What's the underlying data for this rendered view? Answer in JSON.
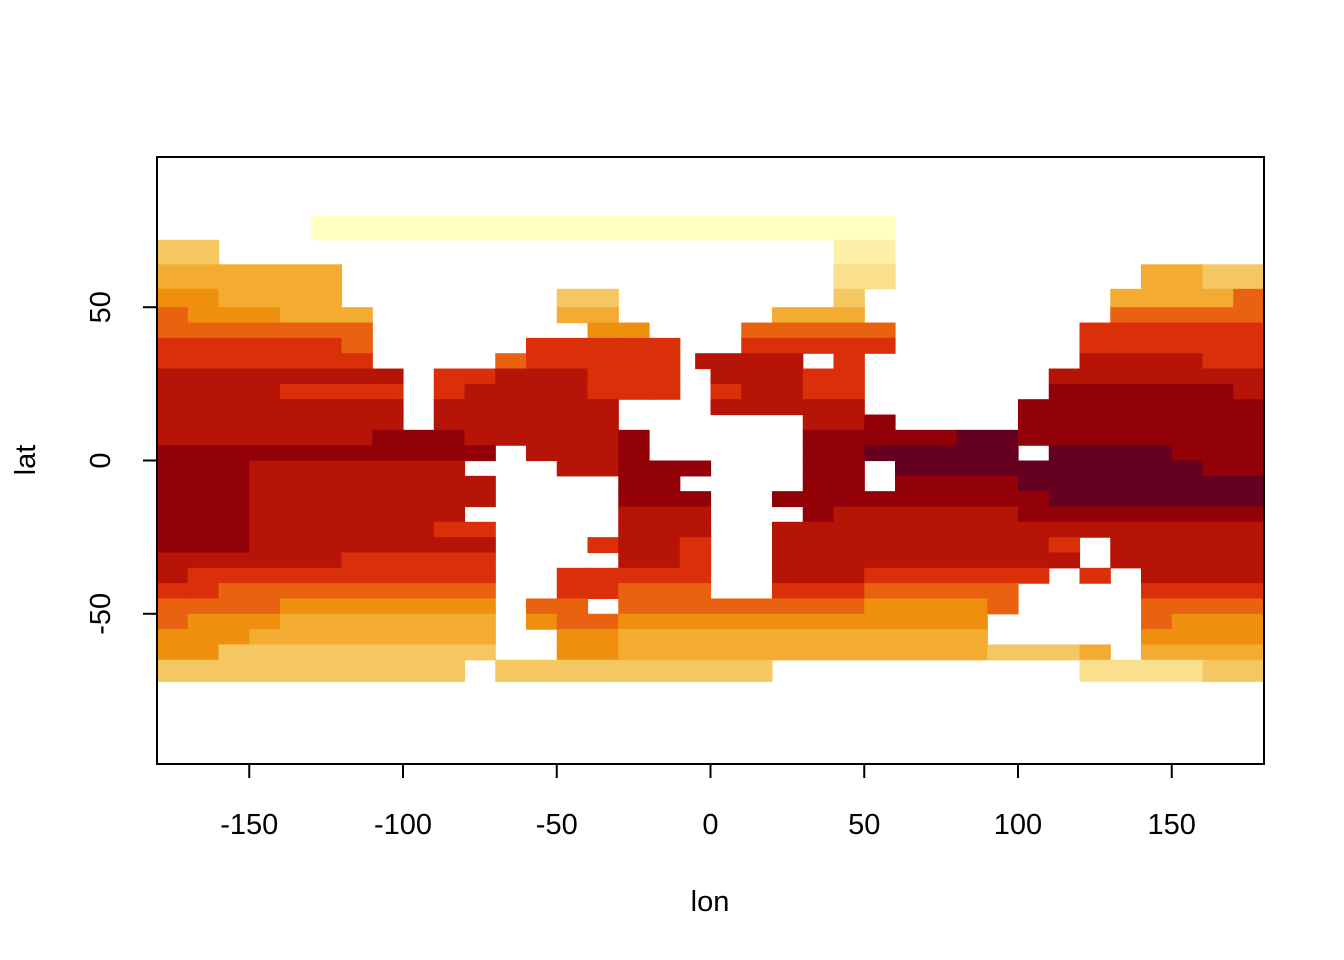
{
  "chart_data": {
    "type": "heatmap",
    "title": "",
    "xlabel": "lon",
    "ylabel": "lat",
    "xlim": [
      -180,
      180
    ],
    "ylim": [
      -99,
      99
    ],
    "x_ticks": [
      -150,
      -100,
      -50,
      0,
      50,
      100,
      150
    ],
    "x_tick_labels": [
      "-150",
      "-100",
      "-50",
      "0",
      "50",
      "100",
      "150"
    ],
    "y_ticks": [
      -50,
      0,
      50
    ],
    "y_tick_labels": [
      "-50",
      "0",
      "50"
    ],
    "grid": false,
    "legend": "none",
    "colormap": "heat (1 = lightest, 10 = darkest)",
    "palette": [
      "#FFFFC0",
      "#FCF0A8",
      "#FADF8C",
      "#F5C763",
      "#F3AC31",
      "#EF8F0E",
      "#E86210",
      "#DA2F08",
      "#B51407",
      "#920108",
      "#650021"
    ],
    "cells": [
      {
        "rows": [
          72,
          80
        ],
        "runs": [
          [
            -130,
            60,
            0
          ]
        ]
      },
      {
        "rows": [
          64,
          72
        ],
        "runs": [
          [
            -180,
            -160,
            3
          ],
          [
            40,
            60,
            1
          ]
        ]
      },
      {
        "rows": [
          56,
          64
        ],
        "runs": [
          [
            -180,
            -120,
            4
          ],
          [
            40,
            60,
            2
          ],
          [
            140,
            160,
            4
          ],
          [
            160,
            180,
            3
          ]
        ]
      },
      {
        "rows": [
          50,
          56
        ],
        "runs": [
          [
            -180,
            -160,
            5
          ],
          [
            -160,
            -140,
            4
          ],
          [
            -140,
            -120,
            4
          ],
          [
            -50,
            -30,
            3
          ],
          [
            40,
            50,
            3
          ],
          [
            130,
            160,
            4
          ],
          [
            160,
            170,
            4
          ],
          [
            170,
            180,
            6
          ]
        ]
      },
      {
        "rows": [
          45,
          50
        ],
        "runs": [
          [
            -180,
            -170,
            6
          ],
          [
            -170,
            -160,
            5
          ],
          [
            -160,
            -140,
            5
          ],
          [
            -140,
            -110,
            4
          ],
          [
            -50,
            -40,
            4
          ],
          [
            -40,
            -30,
            4
          ],
          [
            20,
            50,
            4
          ],
          [
            130,
            160,
            6
          ],
          [
            160,
            180,
            6
          ]
        ]
      },
      {
        "rows": [
          40,
          45
        ],
        "runs": [
          [
            -180,
            -150,
            6
          ],
          [
            -150,
            -110,
            6
          ],
          [
            -40,
            -20,
            5
          ],
          [
            10,
            20,
            6
          ],
          [
            20,
            60,
            6
          ],
          [
            120,
            130,
            7
          ],
          [
            130,
            180,
            7
          ]
        ]
      },
      {
        "rows": [
          35,
          40
        ],
        "runs": [
          [
            -180,
            -120,
            7
          ],
          [
            -120,
            -110,
            6
          ],
          [
            -60,
            -30,
            7
          ],
          [
            -30,
            -10,
            7
          ],
          [
            10,
            60,
            7
          ],
          [
            120,
            180,
            7
          ]
        ]
      },
      {
        "rows": [
          30,
          35
        ],
        "runs": [
          [
            -180,
            -120,
            7
          ],
          [
            -120,
            -110,
            7
          ],
          [
            -70,
            -60,
            6
          ],
          [
            -60,
            -20,
            7
          ],
          [
            -20,
            -10,
            7
          ],
          [
            -5,
            10,
            8
          ],
          [
            10,
            30,
            8
          ],
          [
            40,
            50,
            7
          ],
          [
            120,
            160,
            8
          ],
          [
            160,
            180,
            7
          ]
        ]
      },
      {
        "rows": [
          25,
          30
        ],
        "runs": [
          [
            -180,
            -100,
            8
          ],
          [
            -90,
            -70,
            7
          ],
          [
            -70,
            -40,
            8
          ],
          [
            -40,
            -10,
            7
          ],
          [
            0,
            30,
            8
          ],
          [
            30,
            50,
            7
          ],
          [
            110,
            180,
            8
          ]
        ]
      },
      {
        "rows": [
          20,
          25
        ],
        "runs": [
          [
            -180,
            -140,
            8
          ],
          [
            -140,
            -130,
            7
          ],
          [
            -130,
            -100,
            7
          ],
          [
            -90,
            -80,
            7
          ],
          [
            -80,
            -40,
            8
          ],
          [
            -40,
            -20,
            7
          ],
          [
            -20,
            -10,
            7
          ],
          [
            0,
            10,
            7
          ],
          [
            10,
            30,
            8
          ],
          [
            30,
            50,
            7
          ],
          [
            110,
            170,
            9
          ],
          [
            170,
            180,
            8
          ]
        ]
      },
      {
        "rows": [
          15,
          20
        ],
        "runs": [
          [
            -180,
            -100,
            8
          ],
          [
            -90,
            -30,
            8
          ],
          [
            0,
            30,
            8
          ],
          [
            30,
            50,
            8
          ],
          [
            100,
            180,
            9
          ]
        ]
      },
      {
        "rows": [
          10,
          15
        ],
        "runs": [
          [
            -180,
            -100,
            8
          ],
          [
            -90,
            -30,
            8
          ],
          [
            30,
            50,
            8
          ],
          [
            50,
            60,
            9
          ],
          [
            100,
            180,
            9
          ]
        ]
      },
      {
        "rows": [
          5,
          10
        ],
        "runs": [
          [
            -180,
            -110,
            8
          ],
          [
            -110,
            -80,
            9
          ],
          [
            -80,
            -30,
            8
          ],
          [
            -30,
            -20,
            9
          ],
          [
            30,
            50,
            9
          ],
          [
            50,
            80,
            9
          ],
          [
            80,
            100,
            10
          ],
          [
            100,
            180,
            9
          ]
        ]
      },
      {
        "rows": [
          0,
          5
        ],
        "runs": [
          [
            -180,
            -80,
            9
          ],
          [
            -80,
            -70,
            9
          ],
          [
            -60,
            -30,
            8
          ],
          [
            -30,
            -20,
            9
          ],
          [
            30,
            50,
            9
          ],
          [
            50,
            70,
            10
          ],
          [
            70,
            90,
            10
          ],
          [
            90,
            100,
            10
          ],
          [
            110,
            150,
            10
          ],
          [
            150,
            180,
            9
          ]
        ]
      },
      {
        "rows": [
          -5,
          0
        ],
        "runs": [
          [
            -180,
            -150,
            9
          ],
          [
            -150,
            -80,
            8
          ],
          [
            -50,
            -30,
            8
          ],
          [
            -30,
            -20,
            9
          ],
          [
            -20,
            0,
            9
          ],
          [
            30,
            50,
            9
          ],
          [
            60,
            100,
            10
          ],
          [
            100,
            160,
            10
          ],
          [
            160,
            180,
            9
          ]
        ]
      },
      {
        "rows": [
          -10,
          -5
        ],
        "runs": [
          [
            -180,
            -150,
            9
          ],
          [
            -150,
            -70,
            8
          ],
          [
            -30,
            -20,
            9
          ],
          [
            -20,
            -10,
            9
          ],
          [
            30,
            50,
            9
          ],
          [
            60,
            100,
            9
          ],
          [
            100,
            180,
            10
          ]
        ]
      },
      {
        "rows": [
          -15,
          -10
        ],
        "runs": [
          [
            -180,
            -150,
            9
          ],
          [
            -150,
            -70,
            8
          ],
          [
            -30,
            0,
            9
          ],
          [
            20,
            30,
            9
          ],
          [
            30,
            50,
            9
          ],
          [
            50,
            110,
            9
          ],
          [
            110,
            170,
            10
          ],
          [
            170,
            180,
            10
          ]
        ]
      },
      {
        "rows": [
          -20,
          -15
        ],
        "runs": [
          [
            -180,
            -150,
            9
          ],
          [
            -150,
            -140,
            8
          ],
          [
            -140,
            -80,
            8
          ],
          [
            -30,
            0,
            8
          ],
          [
            30,
            40,
            9
          ],
          [
            40,
            100,
            8
          ],
          [
            100,
            180,
            9
          ]
        ]
      },
      {
        "rows": [
          -25,
          -20
        ],
        "runs": [
          [
            -180,
            -150,
            9
          ],
          [
            -150,
            -90,
            8
          ],
          [
            -90,
            -70,
            7
          ],
          [
            -30,
            0,
            8
          ],
          [
            20,
            40,
            8
          ],
          [
            40,
            120,
            8
          ],
          [
            120,
            180,
            8
          ]
        ]
      },
      {
        "rows": [
          -30,
          -25
        ],
        "runs": [
          [
            -180,
            -150,
            9
          ],
          [
            -150,
            -70,
            8
          ],
          [
            -40,
            -30,
            7
          ],
          [
            -30,
            -10,
            8
          ],
          [
            -10,
            0,
            7
          ],
          [
            20,
            110,
            8
          ],
          [
            110,
            120,
            7
          ],
          [
            130,
            180,
            8
          ]
        ]
      },
      {
        "rows": [
          -35,
          -30
        ],
        "runs": [
          [
            -180,
            -120,
            8
          ],
          [
            -120,
            -70,
            7
          ],
          [
            -30,
            -10,
            8
          ],
          [
            -10,
            0,
            7
          ],
          [
            20,
            100,
            8
          ],
          [
            100,
            120,
            8
          ],
          [
            130,
            180,
            8
          ]
        ]
      },
      {
        "rows": [
          -40,
          -35
        ],
        "runs": [
          [
            -180,
            -170,
            8
          ],
          [
            -170,
            -120,
            7
          ],
          [
            -120,
            -70,
            7
          ],
          [
            -50,
            -40,
            7
          ],
          [
            -40,
            -30,
            7
          ],
          [
            -30,
            -10,
            7
          ],
          [
            -10,
            0,
            7
          ],
          [
            20,
            50,
            8
          ],
          [
            50,
            110,
            7
          ],
          [
            120,
            130,
            7
          ],
          [
            140,
            180,
            8
          ]
        ]
      },
      {
        "rows": [
          -45,
          -40
        ],
        "runs": [
          [
            -180,
            -170,
            7
          ],
          [
            -170,
            -160,
            7
          ],
          [
            -160,
            -140,
            6
          ],
          [
            -140,
            -70,
            6
          ],
          [
            -50,
            -30,
            7
          ],
          [
            -30,
            -10,
            6
          ],
          [
            -10,
            0,
            6
          ],
          [
            20,
            50,
            7
          ],
          [
            50,
            90,
            6
          ],
          [
            90,
            100,
            6
          ],
          [
            140,
            180,
            7
          ]
        ]
      },
      {
        "rows": [
          -50,
          -45
        ],
        "runs": [
          [
            -180,
            -170,
            6
          ],
          [
            -170,
            -140,
            6
          ],
          [
            -140,
            -70,
            5
          ],
          [
            -60,
            -50,
            6
          ],
          [
            -50,
            -40,
            6
          ],
          [
            -30,
            0,
            6
          ],
          [
            0,
            50,
            6
          ],
          [
            50,
            90,
            5
          ],
          [
            90,
            100,
            6
          ],
          [
            140,
            180,
            6
          ]
        ]
      },
      {
        "rows": [
          -55,
          -50
        ],
        "runs": [
          [
            -180,
            -170,
            6
          ],
          [
            -170,
            -140,
            5
          ],
          [
            -140,
            -70,
            4
          ],
          [
            -60,
            -50,
            5
          ],
          [
            -50,
            -30,
            6
          ],
          [
            -30,
            90,
            5
          ],
          [
            140,
            150,
            6
          ],
          [
            150,
            180,
            5
          ]
        ]
      },
      {
        "rows": [
          -60,
          -55
        ],
        "runs": [
          [
            -180,
            -150,
            5
          ],
          [
            -150,
            -70,
            4
          ],
          [
            -50,
            -30,
            5
          ],
          [
            -30,
            90,
            4
          ],
          [
            140,
            180,
            5
          ]
        ]
      },
      {
        "rows": [
          -65,
          -60
        ],
        "runs": [
          [
            -180,
            -160,
            5
          ],
          [
            -160,
            -70,
            3
          ],
          [
            -50,
            -30,
            5
          ],
          [
            -30,
            90,
            4
          ],
          [
            90,
            120,
            3
          ],
          [
            120,
            130,
            4
          ],
          [
            140,
            160,
            4
          ],
          [
            160,
            180,
            4
          ]
        ]
      },
      {
        "rows": [
          -72,
          -65
        ],
        "runs": [
          [
            -180,
            -80,
            3
          ],
          [
            -70,
            20,
            3
          ],
          [
            120,
            160,
            2
          ],
          [
            160,
            180,
            3
          ]
        ]
      }
    ]
  }
}
